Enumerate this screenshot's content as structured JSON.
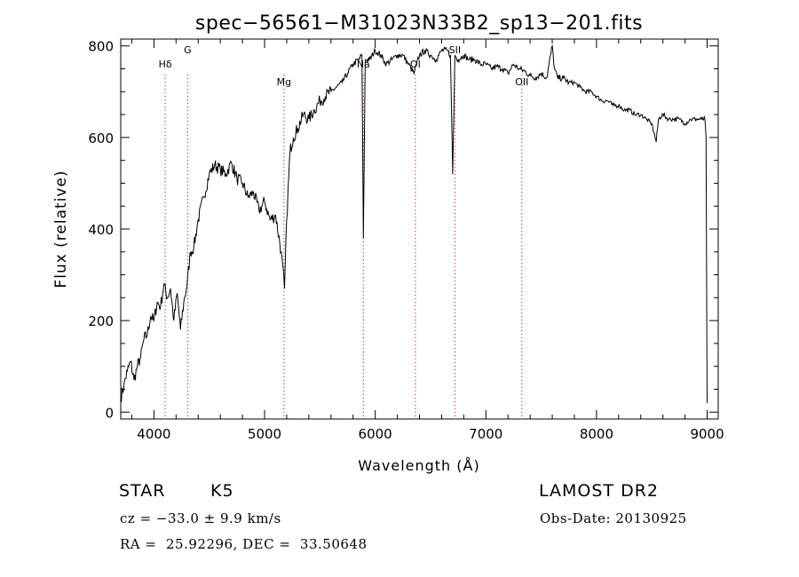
{
  "chart_data": {
    "type": "line",
    "title": "spec−56561−M31023N33B2_sp13−201.fits",
    "xlabel": "Wavelength (Å)",
    "ylabel": "Flux (relative)",
    "xlim": [
      3700,
      9100
    ],
    "ylim": [
      -15,
      815
    ],
    "x_ticks": [
      4000,
      5000,
      6000,
      7000,
      8000,
      9000
    ],
    "y_ticks": [
      0,
      200,
      400,
      600,
      800
    ],
    "line_color": "#000000",
    "marker_color": "#cc0000",
    "series": [
      {
        "x": [
          3700,
          3730,
          3760,
          3790,
          3820,
          3850,
          3880,
          3910,
          3940,
          3970,
          4000,
          4030,
          4060,
          4090,
          4120,
          4150,
          4180,
          4210,
          4240,
          4270,
          4300,
          4330,
          4360,
          4400,
          4450,
          4500,
          4550,
          4600,
          4650,
          4700,
          4750,
          4800,
          4850,
          4900,
          4950,
          5000,
          5050,
          5100,
          5150,
          5180,
          5200,
          5230,
          5260,
          5300,
          5350,
          5400,
          5450,
          5500,
          5550,
          5600,
          5650,
          5700,
          5750,
          5800,
          5850,
          5880,
          5893,
          5910,
          5950,
          6000,
          6050,
          6100,
          6150,
          6200,
          6250,
          6300,
          6350,
          6400,
          6450,
          6500,
          6550,
          6600,
          6650,
          6680,
          6700,
          6720,
          6750,
          6800,
          6850,
          6900,
          6950,
          7000,
          7050,
          7100,
          7150,
          7200,
          7250,
          7300,
          7350,
          7400,
          7450,
          7500,
          7550,
          7600,
          7620,
          7650,
          7700,
          7750,
          7800,
          7850,
          7900,
          7950,
          8000,
          8050,
          8100,
          8150,
          8200,
          8250,
          8300,
          8350,
          8400,
          8450,
          8500,
          8540,
          8560,
          8600,
          8650,
          8700,
          8750,
          8800,
          8850,
          8900,
          8950,
          8980,
          8990,
          8995,
          9000
        ],
        "y": [
          30,
          60,
          90,
          110,
          70,
          100,
          120,
          160,
          170,
          210,
          200,
          240,
          230,
          280,
          250,
          270,
          200,
          260,
          180,
          240,
          280,
          350,
          360,
          420,
          470,
          520,
          540,
          530,
          520,
          545,
          510,
          500,
          470,
          480,
          440,
          460,
          420,
          430,
          350,
          270,
          420,
          570,
          600,
          620,
          650,
          640,
          660,
          680,
          690,
          700,
          710,
          720,
          740,
          760,
          770,
          780,
          380,
          770,
          770,
          790,
          780,
          760,
          770,
          780,
          780,
          760,
          740,
          780,
          790,
          780,
          770,
          790,
          790,
          780,
          520,
          780,
          770,
          780,
          770,
          770,
          760,
          760,
          750,
          755,
          750,
          740,
          760,
          750,
          745,
          735,
          730,
          740,
          730,
          800,
          750,
          730,
          730,
          720,
          720,
          710,
          700,
          700,
          690,
          680,
          680,
          670,
          670,
          660,
          660,
          650,
          650,
          640,
          630,
          590,
          640,
          650,
          640,
          640,
          640,
          630,
          640,
          640,
          640,
          640,
          600,
          300,
          20
        ]
      }
    ],
    "line_markers": [
      {
        "label": "Hδ",
        "x": 4102
      },
      {
        "label": "G",
        "x": 4305
      },
      {
        "label": "Mg",
        "x": 5175
      },
      {
        "label": "Na",
        "x": 5893
      },
      {
        "label": "OI",
        "x": 6363
      },
      {
        "label": "SII",
        "x": 6720
      },
      {
        "label": "OII",
        "x": 7325
      }
    ]
  },
  "info": {
    "class": "STAR",
    "subclass": "K5",
    "cz": "cz = −33.0 ± 9.9 km/s",
    "coords": "RA =  25.92296, DEC =  33.50648",
    "survey": "LAMOST DR2",
    "obs_date": "Obs-Date: 20130925"
  }
}
